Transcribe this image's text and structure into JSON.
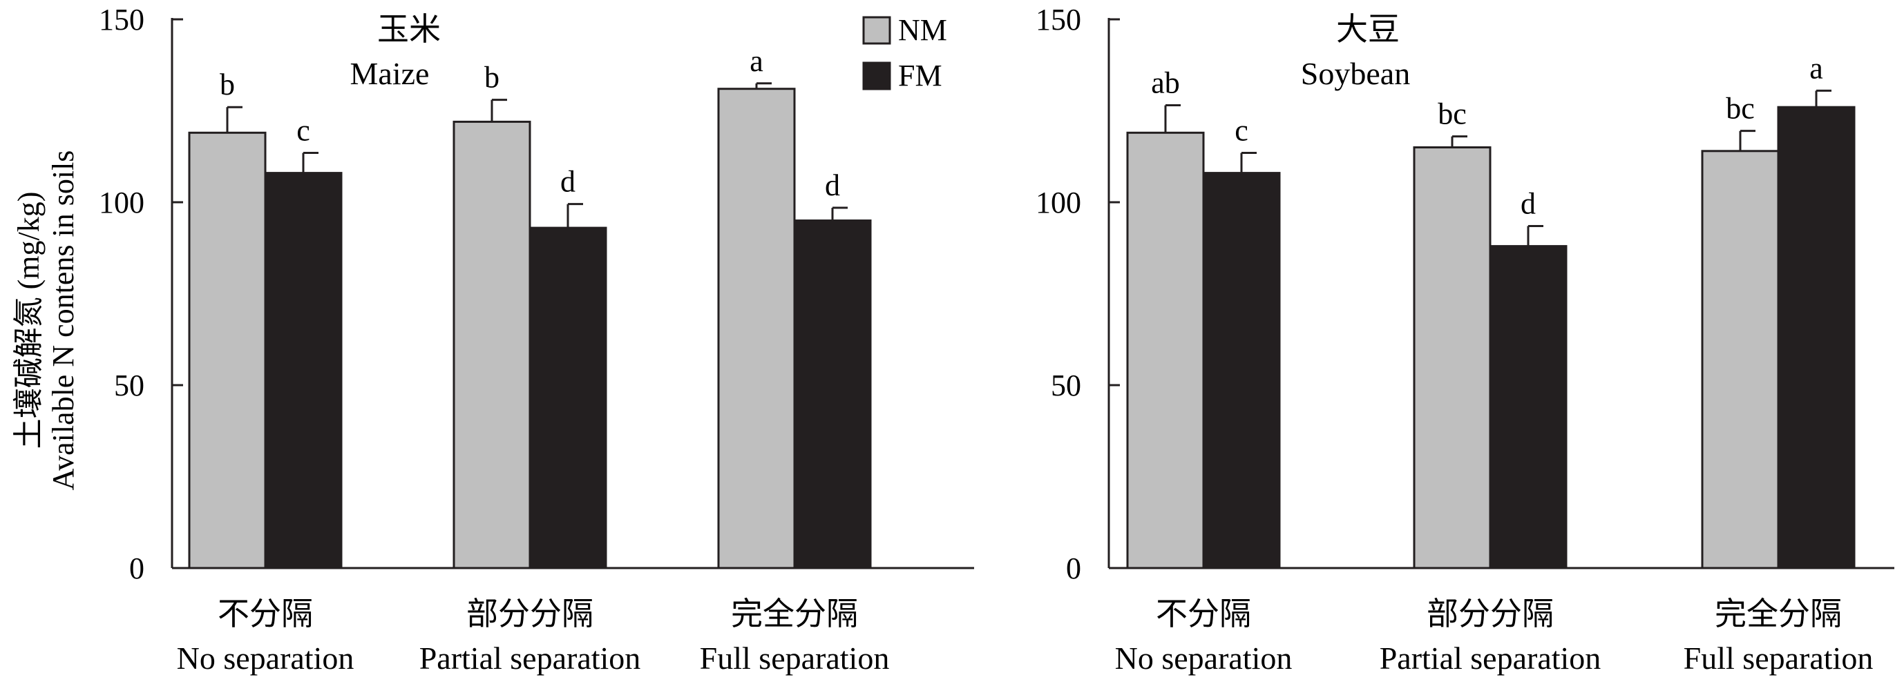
{
  "figure": {
    "ylabel_cn": "土壤碱解氮 (mg/kg)",
    "ylabel_en": "Available N contens in soils",
    "legend": [
      {
        "label": "NM",
        "color": "#bfbfbf"
      },
      {
        "label": "FM",
        "color": "#231f20"
      }
    ]
  },
  "chart_data": [
    {
      "type": "bar",
      "title_cn": "玉米",
      "title_en": "Maize",
      "categories_cn": [
        "不分隔",
        "部分分隔",
        "完全分隔"
      ],
      "categories_en": [
        "No separation",
        "Partial separation",
        "Full separation"
      ],
      "ylim": [
        0,
        150
      ],
      "yticks": [
        0,
        50,
        100,
        150
      ],
      "series": [
        {
          "name": "NM",
          "color": "#bfbfbf",
          "values": [
            119,
            122,
            131
          ],
          "errors": [
            7,
            6,
            1.5
          ],
          "letters": [
            "b",
            "b",
            "a"
          ]
        },
        {
          "name": "FM",
          "color": "#231f20",
          "values": [
            108,
            93,
            95
          ],
          "errors": [
            5.5,
            6.5,
            3.5
          ],
          "letters": [
            "c",
            "d",
            "d"
          ]
        }
      ]
    },
    {
      "type": "bar",
      "title_cn": "大豆",
      "title_en": "Soybean",
      "categories_cn": [
        "不分隔",
        "部分分隔",
        "完全分隔"
      ],
      "categories_en": [
        "No separation",
        "Partial separation",
        "Full separation"
      ],
      "ylim": [
        0,
        150
      ],
      "yticks": [
        0,
        50,
        100,
        150
      ],
      "series": [
        {
          "name": "NM",
          "color": "#bfbfbf",
          "values": [
            119,
            115,
            114
          ],
          "errors": [
            7.5,
            3,
            5.5
          ],
          "letters": [
            "ab",
            "bc",
            "bc"
          ]
        },
        {
          "name": "FM",
          "color": "#231f20",
          "values": [
            108,
            88,
            126
          ],
          "errors": [
            5.5,
            5.5,
            4.5
          ],
          "letters": [
            "c",
            "d",
            "a"
          ]
        }
      ]
    }
  ]
}
